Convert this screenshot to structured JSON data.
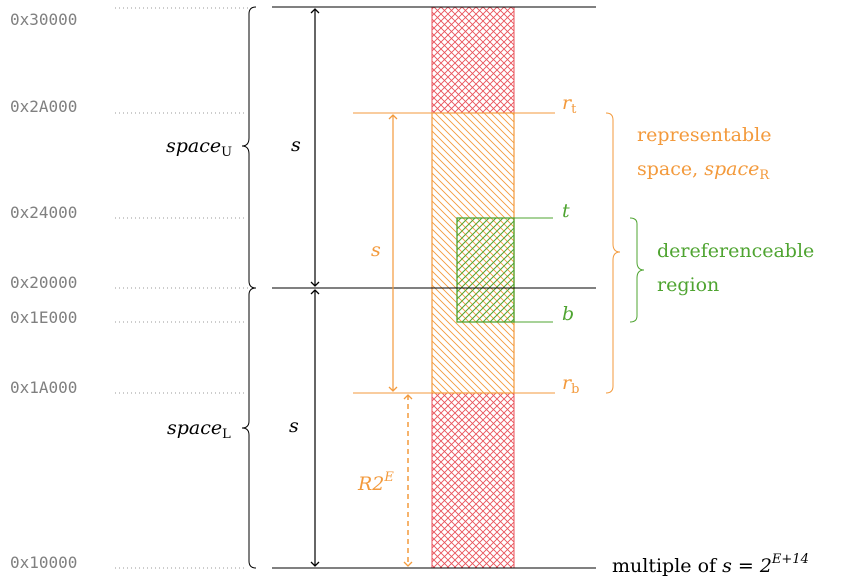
{
  "addresses": {
    "a30000": "0x30000",
    "a2A000": "0x2A000",
    "a24000": "0x24000",
    "a20000": "0x20000",
    "a1E000": "0x1E000",
    "a1A000": "0x1A000",
    "a10000": "0x10000"
  },
  "labels": {
    "space_upper_base": "space",
    "space_upper_sub": "U",
    "space_lower_base": "space",
    "space_lower_sub": "L",
    "s_upper": "s",
    "s_lower": "s",
    "s_orange": "s",
    "r_top_base": "r",
    "r_top_sub": "t",
    "r_bottom_base": "r",
    "r_bottom_sub": "b",
    "t": "t",
    "b": "b",
    "representable_line1": "representable",
    "representable_line2_prefix": "space, ",
    "representable_space_base": "space",
    "representable_space_sub": "R",
    "deref_line1": "dereferenceable",
    "deref_line2": "region",
    "r2e_base": "R2",
    "r2e_sup": "E",
    "multiple_prefix": "multiple of ",
    "multiple_math": "s = 2",
    "multiple_sup": "E+14"
  },
  "colors": {
    "black": "#000000",
    "orange": "#f39a3c",
    "green": "#4fa431",
    "red": "#e8525a",
    "gray": "#808080"
  }
}
